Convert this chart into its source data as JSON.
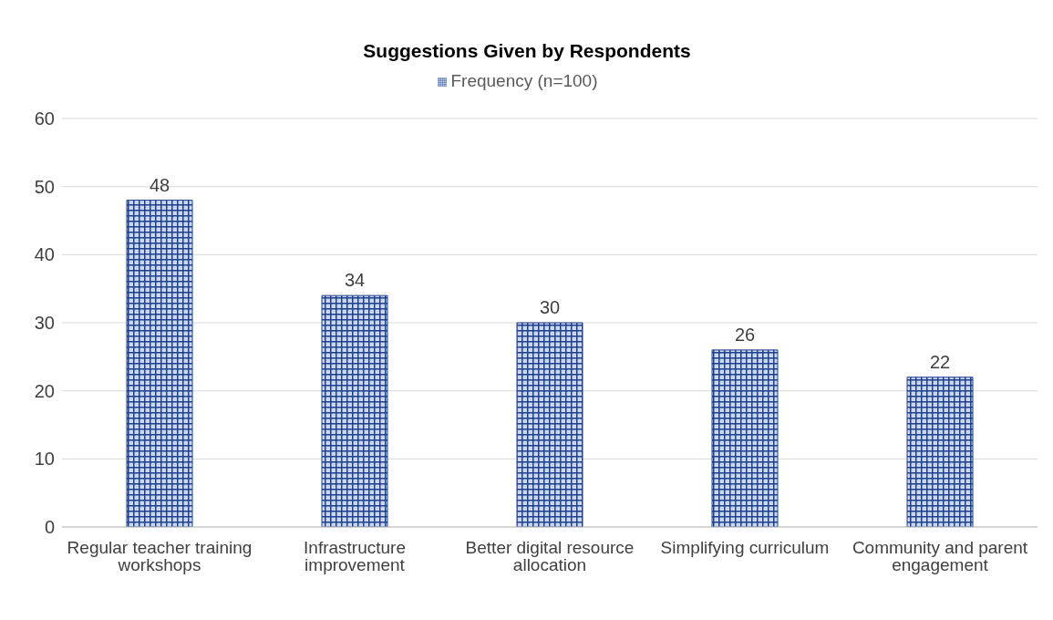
{
  "chart_data": {
    "type": "bar",
    "title": "Suggestions Given by Respondents",
    "categories": [
      "Regular teacher training workshops",
      "Infrastructure improvement",
      "Better digital resource allocation",
      "Simplifying curriculum",
      "Community and parent engagement"
    ],
    "series": [
      {
        "name": "Frequency (n=100)",
        "color": "#1f3f8c",
        "values": [
          48,
          34,
          30,
          26,
          22
        ]
      }
    ],
    "ylim": [
      0,
      60
    ],
    "yticks": [
      0,
      10,
      20,
      30,
      40,
      50,
      60
    ],
    "grid": "y",
    "legend": "top",
    "data_labels": true
  }
}
